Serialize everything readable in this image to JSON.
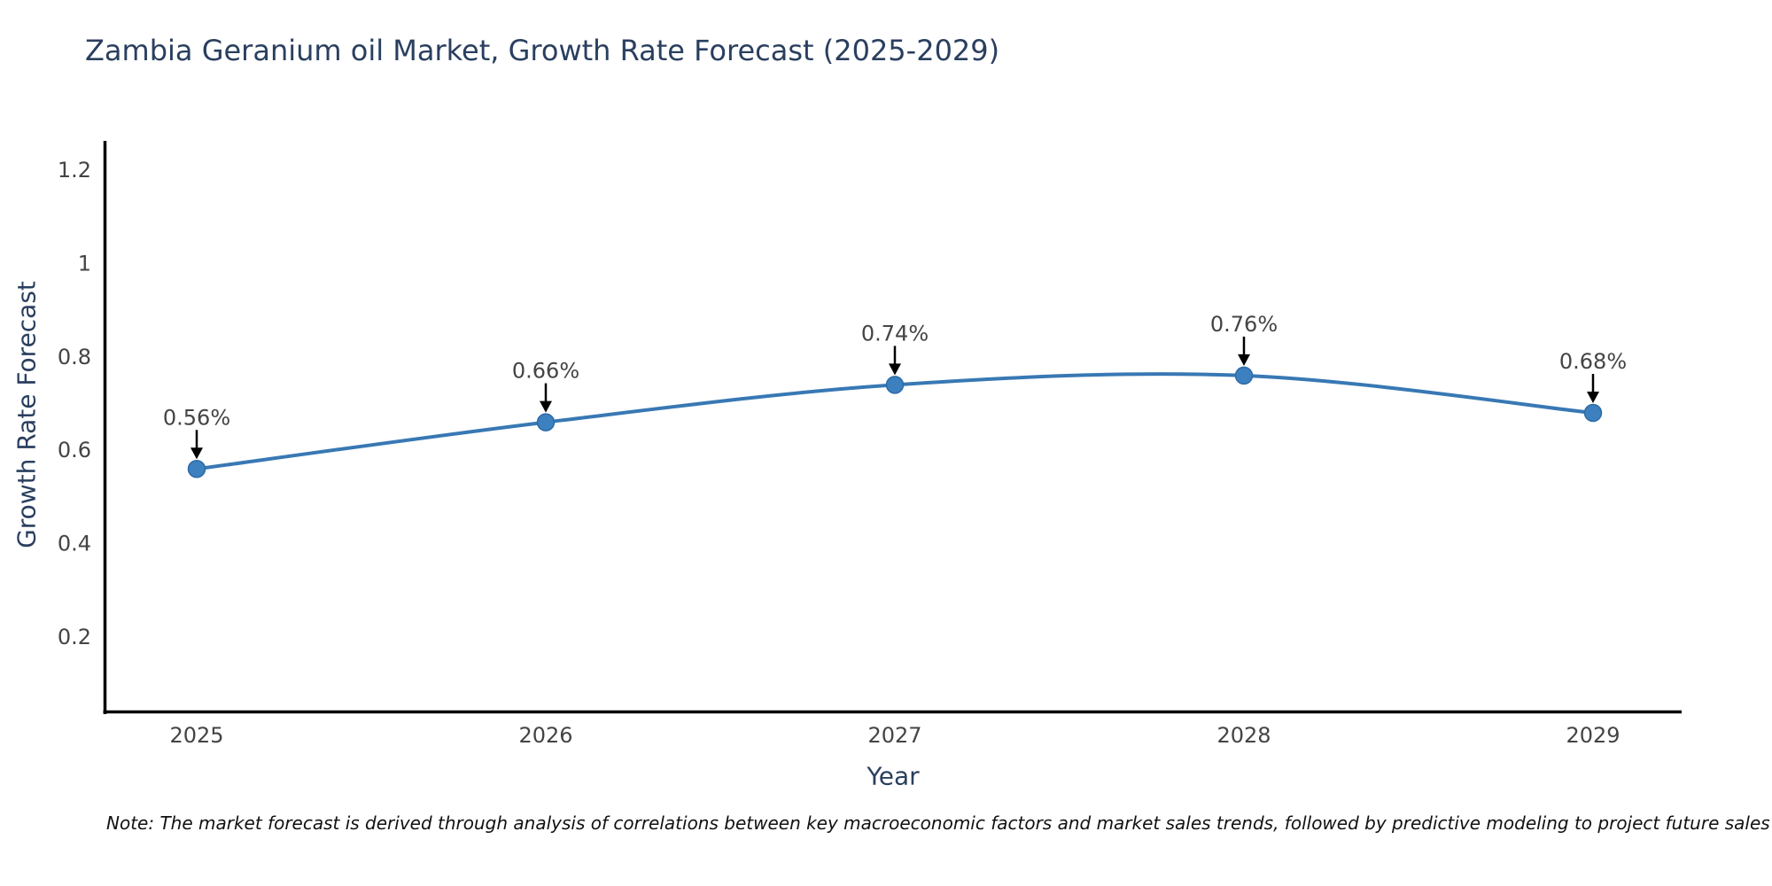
{
  "title": "Zambia Geranium oil Market, Growth Rate Forecast (2025-2029)",
  "note": "Note: The market forecast is derived through analysis of correlations between key macroeconomic factors and market sales trends, followed by predictive modeling to project future sales",
  "chart_data": {
    "type": "line",
    "title": "Zambia Geranium oil Market, Growth Rate Forecast (2025-2029)",
    "categories": [
      "2025",
      "2026",
      "2027",
      "2028",
      "2029"
    ],
    "series": [
      {
        "name": "Growth Rate Forecast",
        "values": [
          0.56,
          0.66,
          0.74,
          0.76,
          0.68
        ]
      }
    ],
    "point_labels": [
      "0.56%",
      "0.66%",
      "0.74%",
      "0.76%",
      "0.68%"
    ],
    "xlabel": "Year",
    "ylabel": "Growth Rate Forecast",
    "yticks": [
      "0.2",
      "0.4",
      "0.6",
      "0.8",
      "1",
      "1.2"
    ],
    "ytick_values": [
      0.2,
      0.4,
      0.6,
      0.8,
      1.0,
      1.2
    ],
    "ylim": [
      0.04,
      1.26
    ],
    "line_shape": "spline",
    "grid": false,
    "legend": "none",
    "colors": {
      "line": "#3878b4",
      "marker_fill": "#3c80c0",
      "marker_edge": "#2d6ba6",
      "axis_line": "#000000",
      "tick_label": "#444444",
      "axis_title": "#2a3f5f",
      "title": "#2a3f5f",
      "annotation_text": "#444444",
      "annotation_arrow": "#000000",
      "background": "#ffffff"
    }
  }
}
